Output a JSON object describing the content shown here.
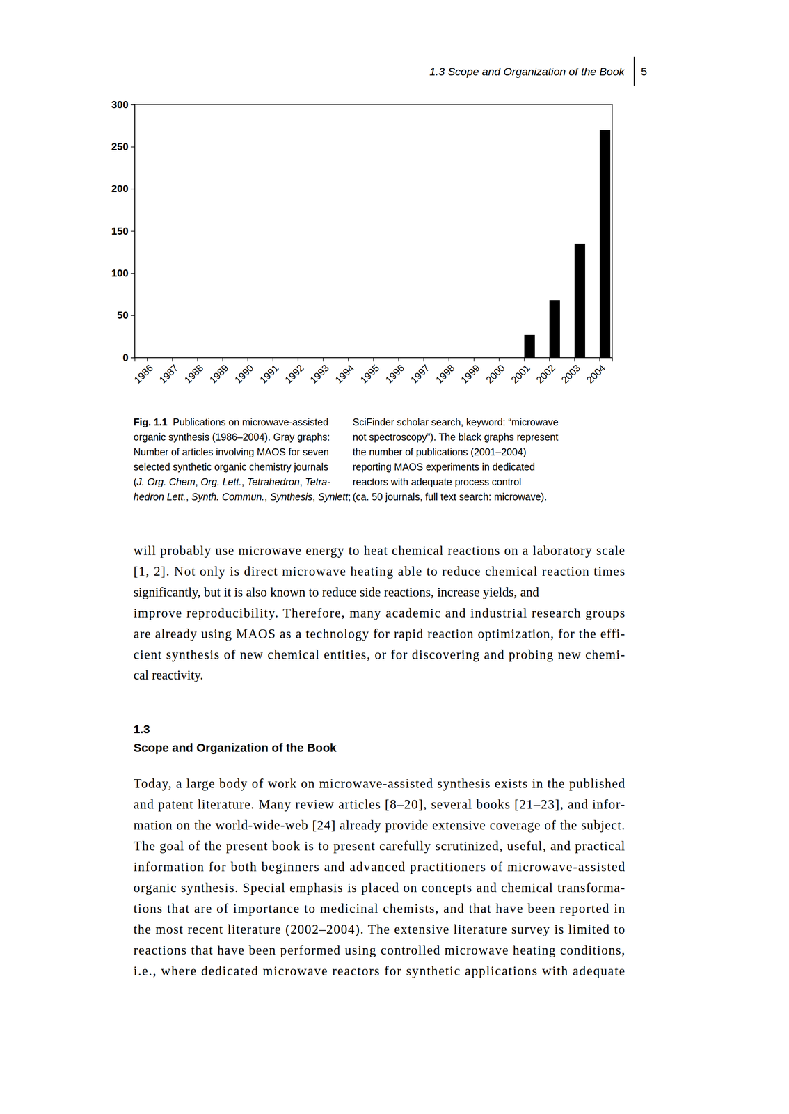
{
  "header": {
    "section": "1.3 Scope and Organization of the Book",
    "page": "5"
  },
  "chart_data": {
    "type": "bar",
    "categories": [
      "1986",
      "1987",
      "1988",
      "1989",
      "1990",
      "1991",
      "1992",
      "1993",
      "1994",
      "1995",
      "1996",
      "1997",
      "1998",
      "1999",
      "2000",
      "2001",
      "2002",
      "2003",
      "2004"
    ],
    "values": [
      0,
      0,
      0,
      0,
      0,
      0,
      0,
      0,
      0,
      0,
      0,
      0,
      0,
      0,
      0,
      27,
      68,
      135,
      270
    ],
    "color": "#000000",
    "ylim": [
      0,
      300
    ],
    "yticks": [
      0,
      50,
      100,
      150,
      200,
      250,
      300
    ],
    "grid": false
  },
  "caption": {
    "left": [
      [
        {
          "text": "Fig. 1.1",
          "bold": true
        },
        {
          "text": "  Publications on microwave-assisted"
        }
      ],
      [
        {
          "text": "organic synthesis (1986–2004). Gray graphs:"
        }
      ],
      [
        {
          "text": "Number of articles involving MAOS for seven"
        }
      ],
      [
        {
          "text": "selected synthetic organic chemistry journals"
        }
      ],
      [
        {
          "text": "("
        },
        {
          "text": "J. Org. Chem",
          "italic": true
        },
        {
          "text": ", "
        },
        {
          "text": "Org. Lett.",
          "italic": true
        },
        {
          "text": ", "
        },
        {
          "text": "Tetrahedron",
          "italic": true
        },
        {
          "text": ", "
        },
        {
          "text": "Tetra-",
          "italic": true
        }
      ],
      [
        {
          "text": "hedron Lett.",
          "italic": true
        },
        {
          "text": ", "
        },
        {
          "text": "Synth. Commun.",
          "italic": true
        },
        {
          "text": ", "
        },
        {
          "text": "Synthesis",
          "italic": true
        },
        {
          "text": ", "
        },
        {
          "text": "Synlett",
          "italic": true
        },
        {
          "text": ";"
        }
      ]
    ],
    "right": [
      [
        {
          "text": "SciFinder scholar search, keyword: “microwave"
        }
      ],
      [
        {
          "text": "not spectroscopy”). The black graphs represent"
        }
      ],
      [
        {
          "text": "the number of publications (2001–2004)"
        }
      ],
      [
        {
          "text": "reporting MAOS experiments in dedicated"
        }
      ],
      [
        {
          "text": "reactors with adequate process control"
        }
      ],
      [
        {
          "text": "(ca. 50 journals, full text search: microwave)."
        }
      ]
    ]
  },
  "body": [
    {
      "type": "paragraph",
      "lines": [
        "will probably use microwave energy to heat chemical reactions on a laboratory scale",
        "[1, 2]. Not only is direct microwave heating able to reduce chemical reaction times",
        "significantly, but it is also known to reduce side reactions, increase yields, and",
        "improve reproducibility. Therefore, many academic and industrial research groups",
        "are already using MAOS as a technology for rapid reaction optimization, for the effi-",
        "cient synthesis of new chemical entities, or for discovering and probing new chemi-",
        "cal reactivity."
      ]
    },
    {
      "type": "heading",
      "number": "1.3",
      "title": "Scope and Organization of the Book"
    },
    {
      "type": "paragraph",
      "lines": [
        "Today, a large body of work on microwave-assisted synthesis exists in the published",
        "and patent literature. Many review articles [8–20], several books [21–23], and infor-",
        "mation on the world-wide-web [24] already provide extensive coverage of the subject.",
        "The goal of the present book is to present carefully scrutinized, useful, and practical",
        "information for both beginners and advanced practitioners of microwave-assisted",
        "organic synthesis. Special emphasis is placed on concepts and chemical transforma-",
        "tions that are of importance to medicinal chemists, and that have been reported in",
        "the most recent literature (2002–2004). The extensive literature survey is limited to",
        "reactions that have been performed using controlled microwave heating conditions,",
        "i.e., where dedicated microwave reactors for synthetic applications with adequate"
      ]
    }
  ]
}
